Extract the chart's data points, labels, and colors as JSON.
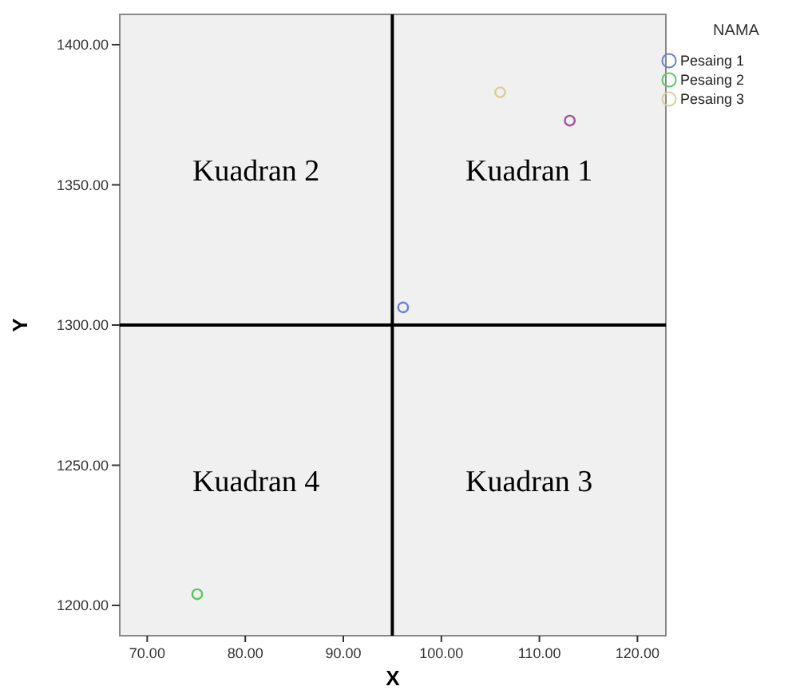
{
  "chart_data": {
    "type": "scatter",
    "xlabel": "X",
    "ylabel": "Y",
    "legend_title": "NAMA",
    "legend": "top right",
    "marker": "circle",
    "grid": false,
    "xlim": [
      67.2,
      122.9
    ],
    "ylim": [
      1189.2,
      1410.8
    ],
    "xticks": [
      {
        "value": 70,
        "label": "70.00"
      },
      {
        "value": 80,
        "label": "80.00"
      },
      {
        "value": 90,
        "label": "90.00"
      },
      {
        "value": 100,
        "label": "100.00"
      },
      {
        "value": 110,
        "label": "110.00"
      },
      {
        "value": 120,
        "label": "120.00"
      }
    ],
    "yticks": [
      {
        "value": 1200,
        "label": "1200.00"
      },
      {
        "value": 1250,
        "label": "1250.00"
      },
      {
        "value": 1300,
        "label": "1300.00"
      },
      {
        "value": 1350,
        "label": "1350.00"
      },
      {
        "value": 1400,
        "label": "1400.00"
      }
    ],
    "ref_lines": [
      {
        "axis": "x",
        "value": 95,
        "color": "#000000"
      },
      {
        "axis": "y",
        "value": 1300,
        "color": "#000000"
      }
    ],
    "annotations": [
      "Kuadran 2",
      "Kuadran 1",
      "Kuadran 4",
      "Kuadran 3"
    ],
    "series": [
      {
        "name": "Pesaing 1",
        "color": "#6b7fd6",
        "x": [
          96.1
        ],
        "values": [
          1306.3
        ]
      },
      {
        "name": "Pesaing 2",
        "color": "#5cc65c",
        "x": [
          75.1
        ],
        "values": [
          1204
        ]
      },
      {
        "name": "Pesaing 3",
        "color": "#d9cc9a",
        "x": [
          106
        ],
        "values": [
          1383
        ]
      },
      {
        "color": "#a64ca6",
        "x": [
          113.1
        ],
        "values": [
          1372.9
        ]
      }
    ]
  }
}
